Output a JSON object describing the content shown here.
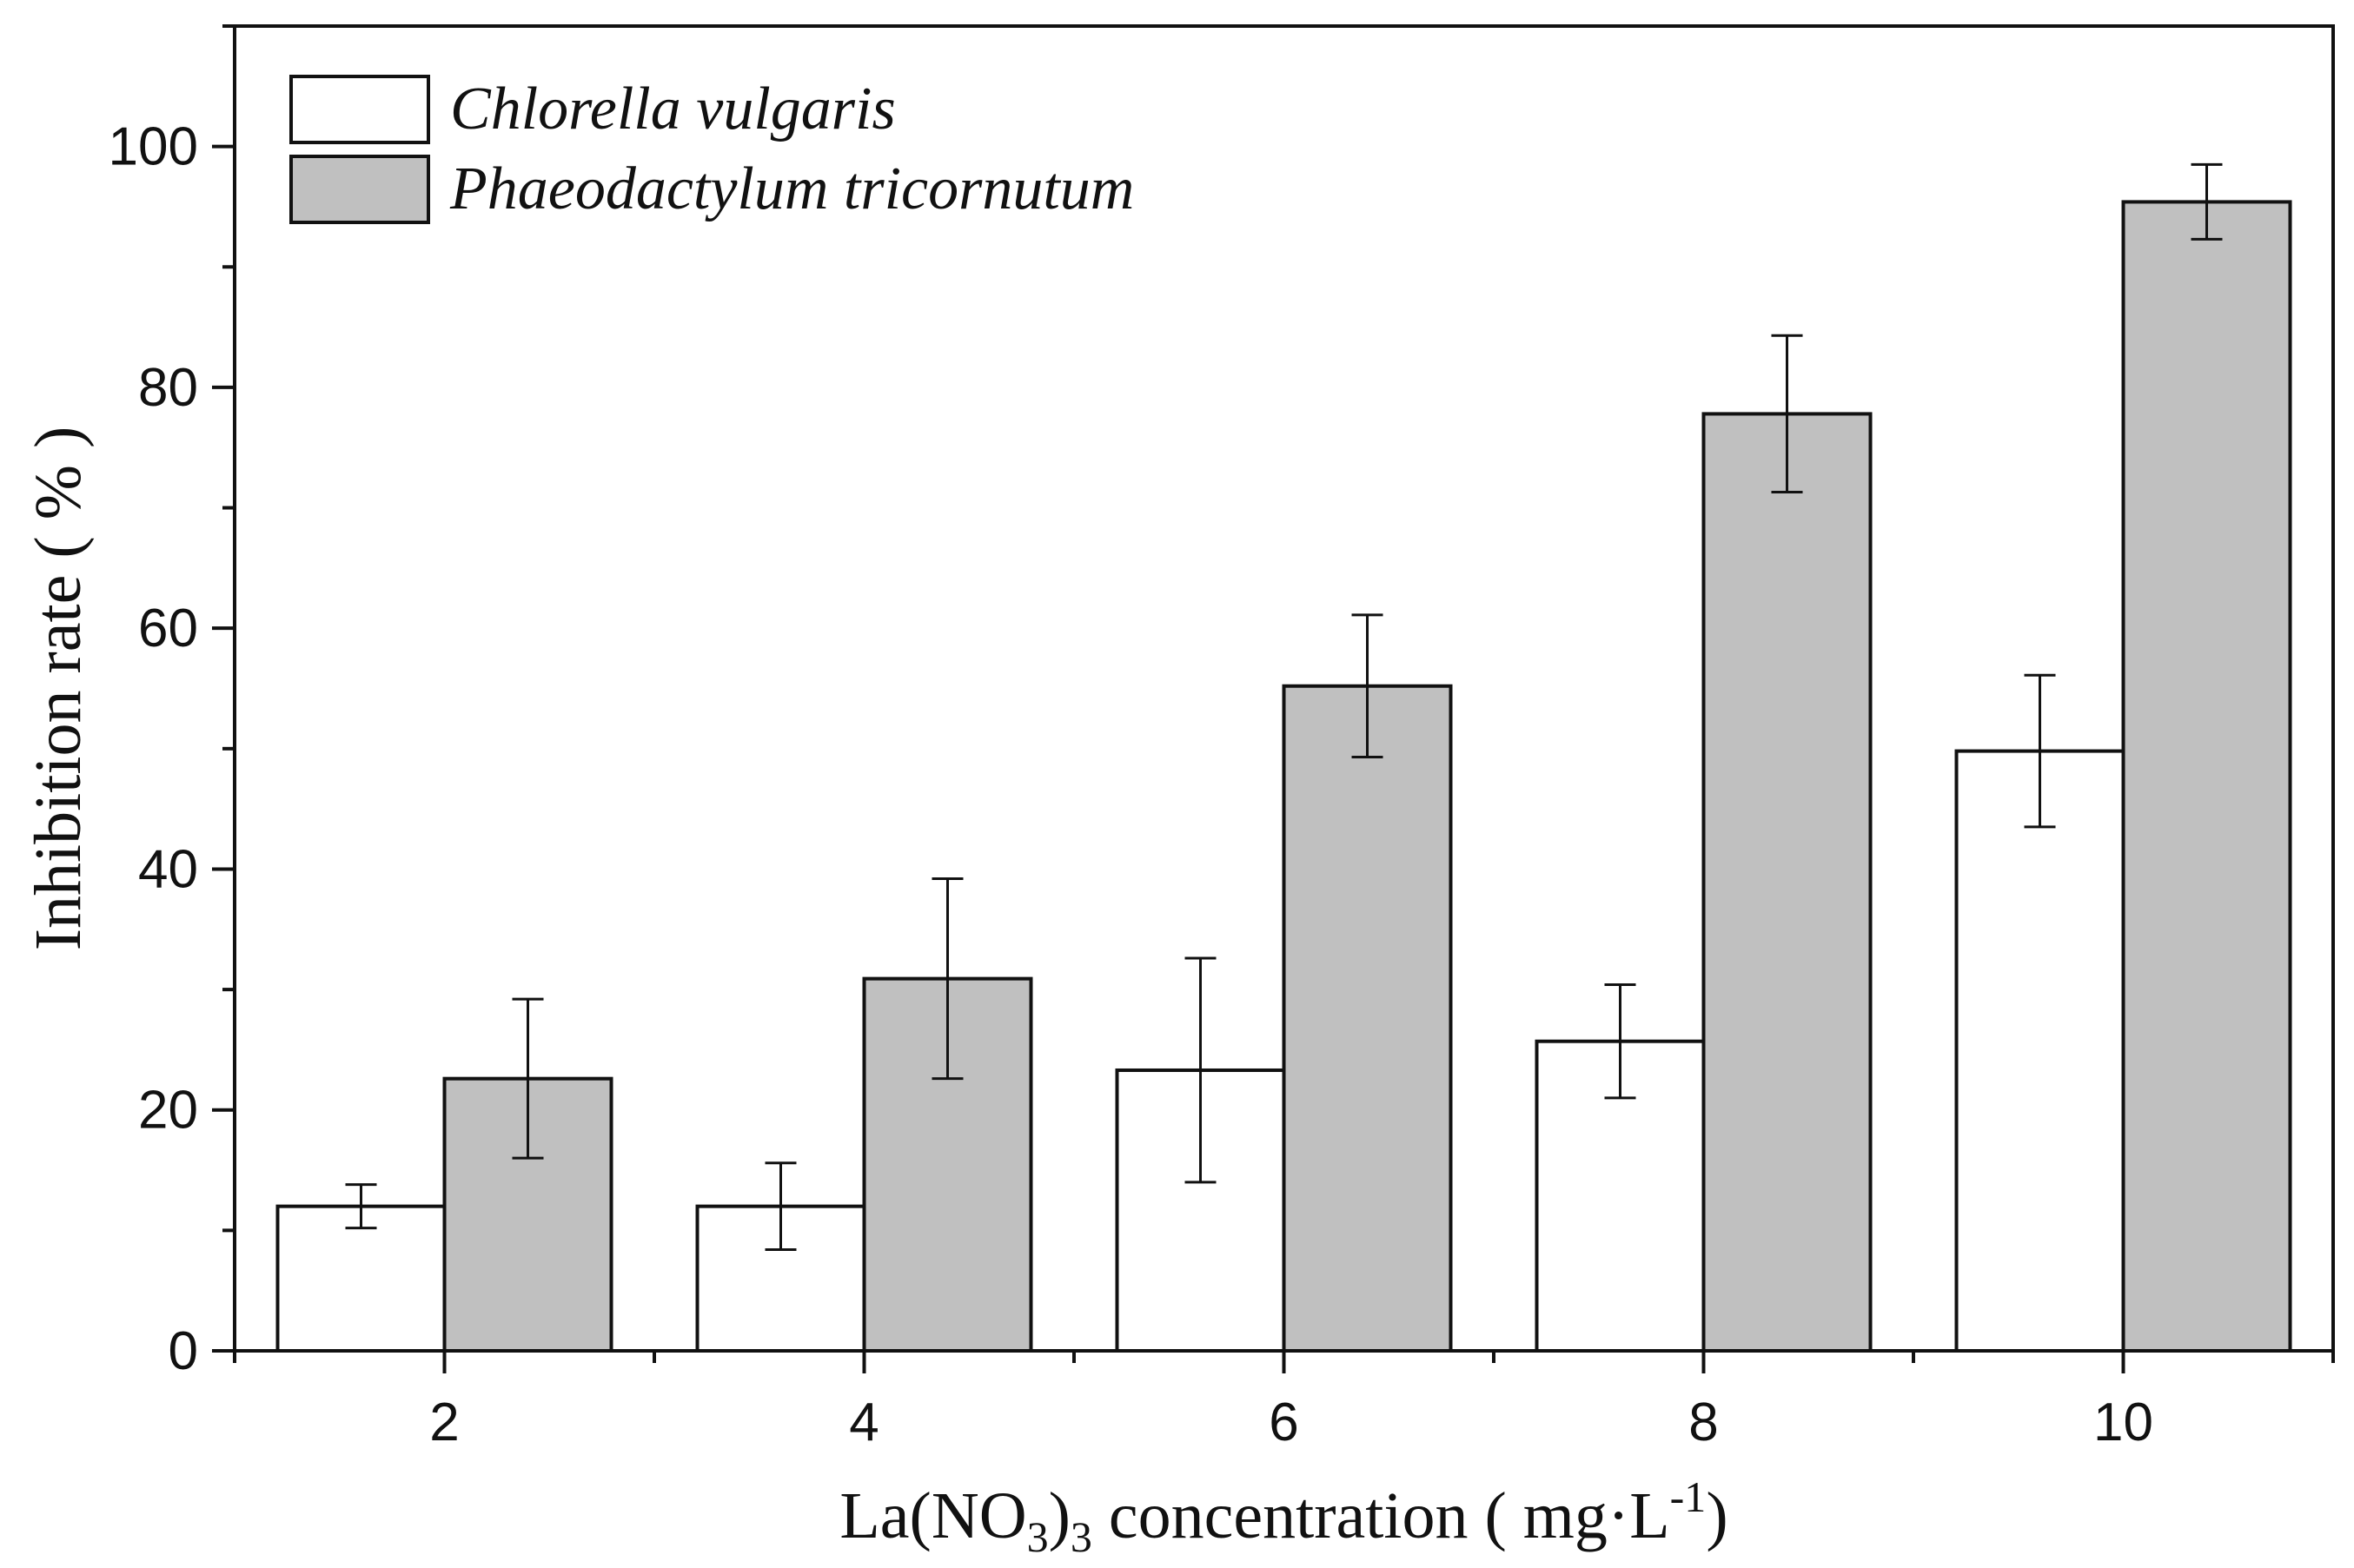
{
  "chart_data": {
    "type": "bar",
    "categories": [
      "2",
      "4",
      "6",
      "8",
      "10"
    ],
    "series": [
      {
        "name": "Chlorella vulgaris",
        "color": "#ffffff",
        "values": [
          12.0,
          12.0,
          23.3,
          25.7,
          49.8
        ],
        "error": [
          1.8,
          3.6,
          9.3,
          4.7,
          6.3
        ]
      },
      {
        "name": "Phaeodactylum tricornutum",
        "color": "#c0c0c0",
        "values": [
          22.6,
          30.9,
          55.2,
          77.8,
          95.4
        ],
        "error": [
          6.6,
          8.3,
          5.9,
          6.5,
          3.1
        ]
      }
    ],
    "ylim": [
      0,
      110
    ],
    "yticks": [
      "0",
      "20",
      "40",
      "60",
      "80",
      "100"
    ],
    "ylabel": "Inhibition rate ( % )",
    "xlabel": {
      "prefix": "La(NO",
      "sub1": "3",
      "mid": ")",
      "sub2": "3",
      "suffix": " concentration ( mg·L",
      "sup": "-1",
      "end": ")"
    },
    "legend_position": "top-left",
    "grid": false
  }
}
